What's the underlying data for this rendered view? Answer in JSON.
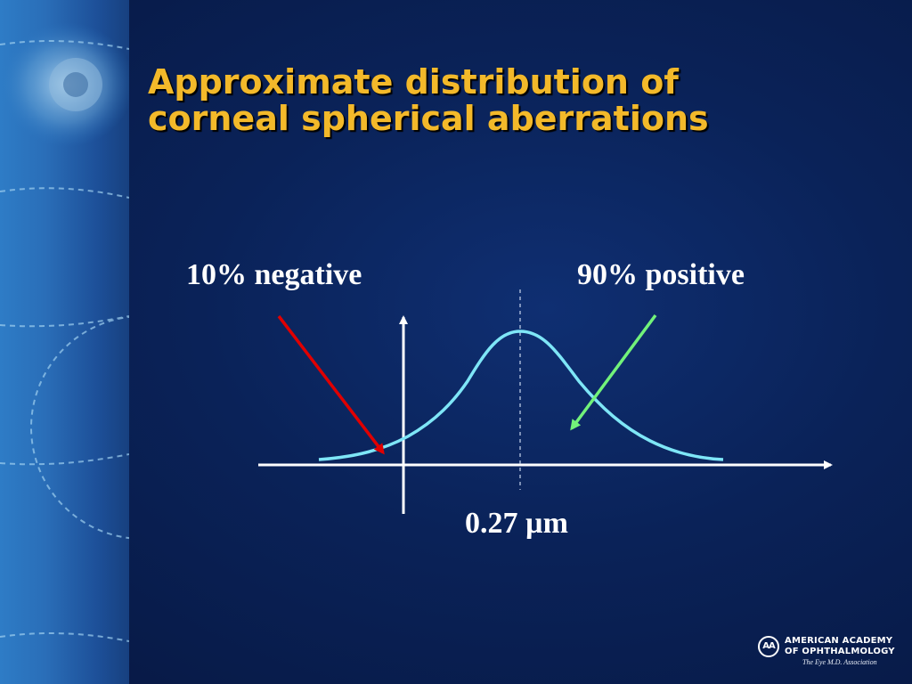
{
  "slide": {
    "title": "Approximate distribution of\ncorneal spherical aberrations",
    "label_negative": "10% negative",
    "label_positive": "90% positive",
    "label_mean": "0.27 µm"
  },
  "logo": {
    "mark": "AA",
    "line1": "AMERICAN ACADEMY",
    "line2": "OF OPHTHALMOLOGY",
    "tagline": "The Eye M.D. Association"
  },
  "colors": {
    "title": "#f3b92a",
    "curve": "#7ee6f7",
    "arrow_negative": "#e00000",
    "arrow_positive": "#72f27a",
    "axes": "#ffffff"
  },
  "icons": {
    "sidebar_graphic": "eye-image",
    "logo": "aao-logo-icon"
  }
}
